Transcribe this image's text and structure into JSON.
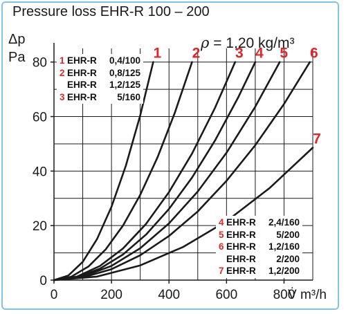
{
  "title": "Pressure loss EHR-R 100 – 200",
  "density": {
    "symbol": "ρ",
    "value": "= 1,20 kg/m³"
  },
  "y_axis": {
    "symbol": "Δp",
    "unit": "Pa"
  },
  "x_axis": {
    "symbol": "V̇",
    "unit": "m³/h"
  },
  "legend_top": [
    {
      "num": "1",
      "model": "EHR-R",
      "size": "0,4/100"
    },
    {
      "num": "2",
      "model": "EHR-R",
      "size": "0,8/125"
    },
    {
      "num": "",
      "model": "EHR-R",
      "size": "1,2/125"
    },
    {
      "num": "3",
      "model": "EHR-R",
      "size": "5/160"
    }
  ],
  "legend_bottom": [
    {
      "num": "4",
      "model": "EHR-R",
      "size": "2,4/160"
    },
    {
      "num": "5",
      "model": "EHR-R",
      "size": "5/200"
    },
    {
      "num": "6",
      "model": "EHR-R",
      "size": "1,2/160"
    },
    {
      "num": "",
      "model": "EHR-R",
      "size": "2/200"
    },
    {
      "num": "7",
      "model": "EHR-R",
      "size": "1,2/200"
    }
  ],
  "colors": {
    "curve": "#1a1a1a",
    "label": "#e0262b",
    "frame": "#7fc4e8",
    "grid": "#1a1a1a"
  },
  "chart_data": {
    "type": "line",
    "title": "Pressure loss EHR-R 100 – 200",
    "xlabel": "V̇ m³/h",
    "ylabel": "Δp Pa",
    "xlim": [
      0,
      900
    ],
    "ylim": [
      0,
      85
    ],
    "xticks": [
      0,
      200,
      400,
      600,
      800
    ],
    "yticks": [
      0,
      20,
      40,
      60,
      80
    ],
    "grid": true,
    "series": [
      {
        "name": "1",
        "x": [
          0,
          50,
          100,
          150,
          200,
          250,
          300,
          345
        ],
        "y": [
          0,
          1.7,
          6.7,
          15.1,
          26.9,
          42.0,
          60.5,
          80
        ]
      },
      {
        "name": "2",
        "x": [
          0,
          60,
          120,
          180,
          240,
          300,
          360,
          420,
          480
        ],
        "y": [
          0,
          1.25,
          5.0,
          11.3,
          20.0,
          31.3,
          45.0,
          61.3,
          80
        ]
      },
      {
        "name": "3",
        "x": [
          0,
          80,
          160,
          240,
          320,
          400,
          480,
          560,
          630
        ],
        "y": [
          0,
          1.3,
          5.2,
          11.6,
          20.6,
          32.3,
          46.4,
          63.2,
          80
        ]
      },
      {
        "name": "4",
        "x": [
          0,
          80,
          160,
          240,
          320,
          400,
          480,
          560,
          640,
          700
        ],
        "y": [
          0,
          1.0,
          4.2,
          9.4,
          16.7,
          26.1,
          37.6,
          51.2,
          66.9,
          80
        ]
      },
      {
        "name": "5",
        "x": [
          0,
          100,
          200,
          300,
          400,
          500,
          600,
          700,
          785
        ],
        "y": [
          0,
          1.3,
          5.2,
          11.7,
          20.8,
          32.5,
          46.7,
          63.6,
          80
        ]
      },
      {
        "name": "6",
        "x": [
          0,
          100,
          200,
          300,
          400,
          500,
          600,
          700,
          800,
          890
        ],
        "y": [
          0,
          1.0,
          4.0,
          9.1,
          16.2,
          25.2,
          36.4,
          49.5,
          64.6,
          80
        ]
      },
      {
        "name": "7",
        "x": [
          0,
          150,
          300,
          450,
          600,
          750,
          900
        ],
        "y": [
          0,
          1.3,
          5.4,
          12.2,
          21.6,
          33.8,
          48.6
        ]
      }
    ]
  }
}
